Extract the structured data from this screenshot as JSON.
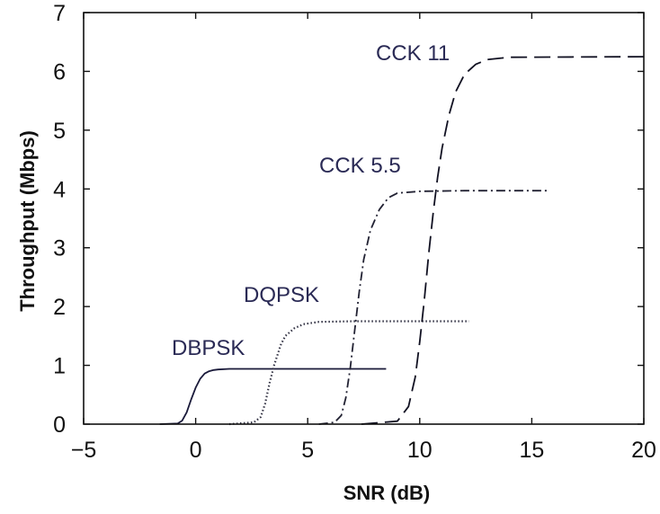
{
  "chart_data": {
    "type": "line",
    "title": "",
    "xlabel": "SNR (dB)",
    "ylabel": "Throughput (Mbps)",
    "xlim": [
      -5,
      20
    ],
    "ylim": [
      0,
      7
    ],
    "xticks": [
      -5,
      0,
      5,
      10,
      15,
      20
    ],
    "yticks": [
      0,
      1,
      2,
      3,
      4,
      5,
      6,
      7
    ],
    "grid": false,
    "legend": "none",
    "series": [
      {
        "name": "DBPSK",
        "color": "#1a1a3a",
        "line_style": "solid",
        "x": [
          -1.6,
          -0.8,
          -0.6,
          -0.4,
          -0.2,
          0.0,
          0.2,
          0.4,
          0.6,
          0.8,
          1.0,
          1.5,
          3.0,
          8.5
        ],
        "y": [
          0.0,
          0.01,
          0.06,
          0.2,
          0.42,
          0.62,
          0.77,
          0.86,
          0.9,
          0.92,
          0.93,
          0.94,
          0.94,
          0.94
        ]
      },
      {
        "name": "DQPSK",
        "color": "#333344",
        "line_style": "dotted",
        "x": [
          1.5,
          2.6,
          2.9,
          3.1,
          3.3,
          3.5,
          3.8,
          4.0,
          4.4,
          4.8,
          5.5,
          7.0,
          12.2
        ],
        "y": [
          0.0,
          0.03,
          0.12,
          0.35,
          0.7,
          1.0,
          1.35,
          1.5,
          1.63,
          1.7,
          1.74,
          1.75,
          1.75
        ]
      },
      {
        "name": "CCK 5.5",
        "color": "#222233",
        "line_style": "dashdot",
        "x": [
          5.5,
          6.2,
          6.5,
          6.7,
          6.9,
          7.1,
          7.3,
          7.5,
          7.8,
          8.2,
          8.6,
          9.0,
          10.0,
          12.0,
          15.7
        ],
        "y": [
          0.0,
          0.03,
          0.15,
          0.45,
          0.95,
          1.6,
          2.25,
          2.8,
          3.3,
          3.65,
          3.85,
          3.93,
          3.96,
          3.97,
          3.97
        ]
      },
      {
        "name": "CCK 11",
        "color": "#111122",
        "line_style": "dashed",
        "x": [
          7.4,
          9.0,
          9.5,
          9.8,
          10.0,
          10.2,
          10.4,
          10.6,
          10.8,
          11.0,
          11.3,
          11.6,
          12.0,
          12.5,
          13.0,
          14.0,
          20.0
        ],
        "y": [
          0.0,
          0.05,
          0.3,
          0.8,
          1.4,
          2.1,
          2.9,
          3.6,
          4.2,
          4.7,
          5.25,
          5.65,
          5.95,
          6.12,
          6.2,
          6.24,
          6.25
        ]
      }
    ],
    "annotations": [
      {
        "text": "DBPSK",
        "series": "DBPSK"
      },
      {
        "text": "DQPSK",
        "series": "DQPSK"
      },
      {
        "text": "CCK 5.5",
        "series": "CCK 5.5"
      },
      {
        "text": "CCK 11",
        "series": "CCK 11"
      }
    ]
  }
}
